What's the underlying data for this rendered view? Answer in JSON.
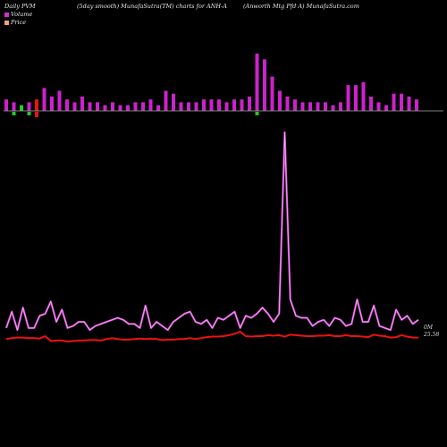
{
  "header": {
    "left": "Daily PVM",
    "center": "(5day smooth) MunafaSutra(TM) charts for ANH-A",
    "right": "(Anworth Mtg Pfd A) MunafaSutra.com"
  },
  "legend": [
    {
      "label": "Volume",
      "color": "#cc33cc"
    },
    {
      "label": "Price",
      "color": "#f0a080"
    }
  ],
  "colors": {
    "volume_line": "#cc44cc",
    "price_line": "#ee1111",
    "bar_up": "#cc22cc",
    "bar_down": "#ee1111",
    "bar_green": "#22cc22",
    "axis": "#aaaaaa"
  },
  "labels": {
    "volume_last": "0M",
    "price_last": "25.58"
  },
  "chart_data": [
    {
      "type": "bar",
      "title": "Volume bars",
      "values": [
        4,
        3,
        2,
        3,
        4,
        8,
        5,
        7,
        4,
        3,
        5,
        3,
        3,
        2,
        3,
        2,
        2,
        3,
        3,
        4,
        2,
        7,
        6,
        3,
        3,
        3,
        4,
        4,
        4,
        3,
        4,
        4,
        5,
        20,
        18,
        12,
        7,
        5,
        4,
        3,
        3,
        3,
        3,
        2,
        3,
        9,
        9,
        10,
        5,
        3,
        2,
        6,
        6,
        5,
        4
      ],
      "colors": [
        "up",
        "up",
        "green",
        "up",
        "down",
        "up",
        "up",
        "up",
        "up",
        "up",
        "up",
        "up",
        "up",
        "up",
        "up",
        "up",
        "up",
        "up",
        "up",
        "up",
        "up",
        "up",
        "up",
        "up",
        "up",
        "up",
        "up",
        "up",
        "up",
        "up",
        "up",
        "up",
        "up",
        "up",
        "up",
        "up",
        "up",
        "up",
        "up",
        "up",
        "up",
        "up",
        "up",
        "up",
        "up",
        "up",
        "up",
        "up",
        "up",
        "up",
        "up",
        "up",
        "up",
        "up",
        "up"
      ],
      "below_values": [
        0,
        2,
        0,
        2,
        3,
        0,
        0,
        0,
        0,
        0,
        0,
        0,
        0,
        0,
        0,
        0,
        0,
        0,
        0,
        0,
        0,
        0,
        0,
        0,
        0,
        0,
        0,
        0,
        0,
        0,
        0,
        0,
        0,
        2,
        0,
        0,
        0,
        0,
        0,
        0,
        0,
        0,
        0,
        0,
        0,
        0,
        0,
        0,
        0,
        0,
        0,
        0,
        0,
        0,
        0
      ],
      "below_colors": [
        "none",
        "green",
        "none",
        "green",
        "down",
        "none",
        "none",
        "none",
        "none",
        "none",
        "none",
        "none",
        "none",
        "none",
        "none",
        "none",
        "none",
        "none",
        "none",
        "none",
        "none",
        "none",
        "none",
        "none",
        "none",
        "none",
        "none",
        "none",
        "none",
        "none",
        "none",
        "none",
        "none",
        "green",
        "none",
        "none",
        "none",
        "none",
        "none",
        "none",
        "none",
        "none",
        "none",
        "none",
        "none",
        "none",
        "none",
        "none",
        "none",
        "none",
        "none",
        "none",
        "none",
        "none",
        "none"
      ]
    },
    {
      "type": "line",
      "series": [
        {
          "name": "Volume",
          "values": [
            4,
            12,
            3,
            14,
            4,
            4,
            10,
            11,
            17,
            7,
            13,
            4,
            5,
            7,
            7,
            3,
            5,
            6,
            7,
            8,
            9,
            8,
            6,
            6,
            4,
            15,
            4,
            7,
            5,
            3,
            7,
            9,
            11,
            12,
            7,
            6,
            8,
            4,
            9,
            8,
            10,
            12,
            4,
            10,
            9,
            11,
            14,
            11,
            7,
            11,
            100,
            18,
            10,
            9,
            9,
            5,
            7,
            8,
            5,
            9,
            8,
            5,
            6,
            18,
            7,
            7,
            15,
            5,
            4,
            3,
            13,
            8,
            10,
            6,
            8
          ]
        },
        {
          "name": "Price",
          "values": [
            25.3,
            25.5,
            25.6,
            25.6,
            25.5,
            25.5,
            25.4,
            25.9,
            24.9,
            25.0,
            25.0,
            24.8,
            24.9,
            25.0,
            25.0,
            25.1,
            25.1,
            25.0,
            25.3,
            25.5,
            25.3,
            25.2,
            25.2,
            25.3,
            25.4,
            25.3,
            25.4,
            25.3,
            25.1,
            25.2,
            25.2,
            25.3,
            25.3,
            25.5,
            25.3,
            25.5,
            25.7,
            25.8,
            25.8,
            25.9,
            26.1,
            26.4,
            26.8,
            25.9,
            25.8,
            25.9,
            25.9,
            26.1,
            26.0,
            26.1,
            25.8,
            26.2,
            26.1,
            26.0,
            25.9,
            25.9,
            26.0,
            26.0,
            26.1,
            25.9,
            25.9,
            26.1,
            25.9,
            25.9,
            25.8,
            25.7,
            26.2,
            26.0,
            25.9,
            25.6,
            25.7,
            26.1,
            25.8,
            25.6,
            25.6
          ]
        }
      ]
    }
  ]
}
